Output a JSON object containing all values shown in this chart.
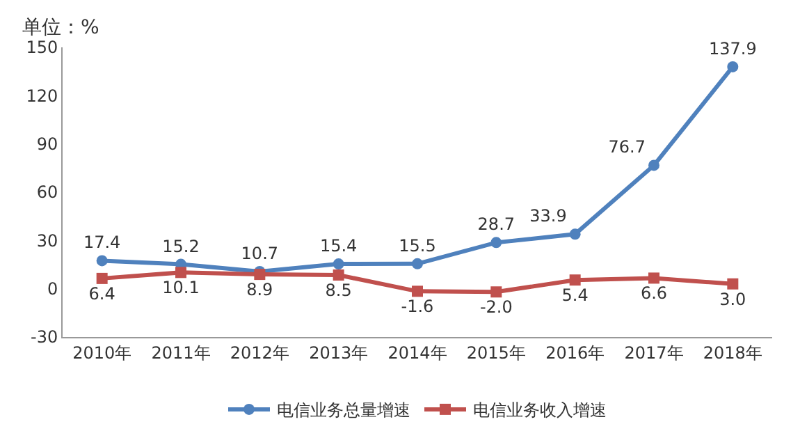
{
  "chart_data": {
    "type": "line",
    "ylabel": "单位：%",
    "categories": [
      "2010年",
      "2011年",
      "2012年",
      "2013年",
      "2014年",
      "2015年",
      "2016年",
      "2017年",
      "2018年"
    ],
    "series": [
      {
        "name": "电信业务总量增速",
        "color": "#4f81bd",
        "marker": "circle",
        "values": [
          17.4,
          15.2,
          10.7,
          15.4,
          15.5,
          28.7,
          33.9,
          76.7,
          137.9
        ],
        "value_labels": [
          "17.4",
          "15.2",
          "10.7",
          "15.4",
          "15.5",
          "28.7",
          "33.9",
          "76.7",
          "137.9"
        ]
      },
      {
        "name": "电信业务收入增速",
        "color": "#c0504d",
        "marker": "square",
        "values": [
          6.4,
          10.1,
          8.9,
          8.5,
          -1.6,
          -2.0,
          5.4,
          6.6,
          3.0
        ],
        "value_labels": [
          "6.4",
          "10.1",
          "8.9",
          "8.5",
          "-1.6",
          "-2.0",
          "5.4",
          "6.6",
          "3.0"
        ]
      }
    ],
    "ylim": [
      -30,
      150
    ],
    "yticks": [
      -30,
      0,
      30,
      60,
      90,
      120,
      150
    ],
    "grid": false,
    "legend": "bottom",
    "line_style": "solid"
  }
}
